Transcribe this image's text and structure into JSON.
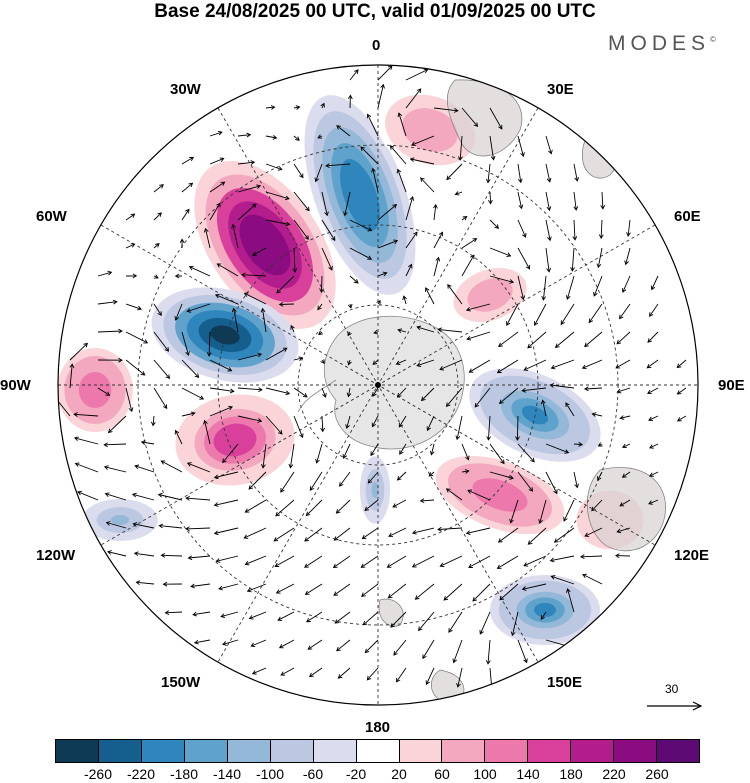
{
  "title": "Base 24/08/2025 00 UTC, valid 01/09/2025 00 UTC",
  "brand": "MODES",
  "brand_mark": "©",
  "longitude_labels": {
    "lon_0": "0",
    "lon_30e": "30E",
    "lon_60e": "60E",
    "lon_90e": "90E",
    "lon_120e": "120E",
    "lon_150e": "150E",
    "lon_180": "180",
    "lon_150w": "150W",
    "lon_120w": "120W",
    "lon_90w": "90W",
    "lon_60w": "60W",
    "lon_30w": "30W"
  },
  "reference_vector": "30",
  "colorbar": {
    "colors": [
      "#0f3a55",
      "#155f8f",
      "#2f86bd",
      "#5fa2cc",
      "#93b8d8",
      "#bcc8e2",
      "#dcdcef",
      "#ffffff",
      "#fad4d8",
      "#f3a8c0",
      "#ec78ac",
      "#d9409c",
      "#b31c8c",
      "#8a0c80",
      "#5e0a74"
    ],
    "ticks": [
      "-260",
      "-220",
      "-180",
      "-140",
      "-100",
      "-60",
      "-20",
      "20",
      "60",
      "100",
      "140",
      "180",
      "220",
      "260"
    ]
  },
  "anomaly_centers": [
    {
      "sign": "positive",
      "value": 260
    },
    {
      "sign": "negative",
      "value": -200
    },
    {
      "sign": "negative",
      "value": -260
    },
    {
      "sign": "positive",
      "value": 160
    },
    {
      "sign": "positive",
      "value": 120
    },
    {
      "sign": "negative",
      "value": -180
    },
    {
      "sign": "positive",
      "value": 120
    },
    {
      "sign": "negative",
      "value": -180
    },
    {
      "sign": "positive",
      "value": 100
    },
    {
      "sign": "negative",
      "value": -100
    },
    {
      "sign": "positive",
      "value": 100
    },
    {
      "sign": "positive",
      "value": 60
    },
    {
      "sign": "negative",
      "value": -100
    }
  ]
}
